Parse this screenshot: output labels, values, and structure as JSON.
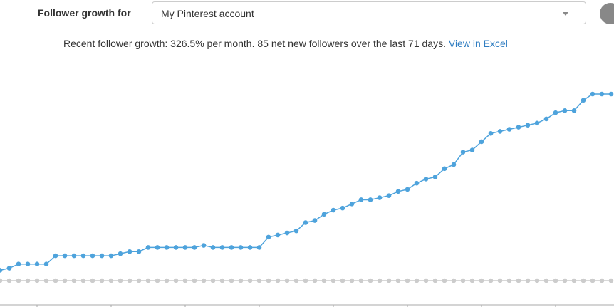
{
  "controls": {
    "label": "Follower growth for",
    "select": "My Pinterest account",
    "summary": "Recent follower growth: 326.5% per month. 85 net new followers over the last 71 days.",
    "link": "View in Excel"
  },
  "chart_data": {
    "type": "line",
    "categories": [
      null,
      null,
      null,
      null,
      null,
      null,
      null,
      null,
      null,
      null,
      null,
      null,
      null,
      null,
      null,
      null,
      null,
      null,
      null,
      null,
      null,
      null,
      null,
      null,
      null,
      null,
      null,
      null,
      null,
      null,
      null,
      null,
      null,
      null,
      null,
      null,
      null,
      null,
      null,
      null,
      null,
      null,
      null,
      null,
      null,
      null,
      null,
      null,
      null,
      null,
      null,
      null,
      null,
      null,
      null,
      null,
      null,
      null,
      null,
      null,
      null,
      null,
      null,
      null,
      null,
      null,
      null
    ],
    "series": [
      {
        "color": "#4ea3dc",
        "values": [
          5,
          6,
          8,
          8,
          8,
          8,
          12,
          12,
          12,
          12,
          12,
          12,
          12,
          13,
          14,
          14,
          16,
          16,
          16,
          16,
          16,
          16,
          17,
          16,
          16,
          16,
          16,
          16,
          16,
          21,
          22,
          23,
          24,
          28,
          29,
          32,
          34,
          35,
          37,
          39,
          39,
          40,
          41,
          43,
          44,
          47,
          49,
          50,
          54,
          56,
          62,
          63,
          67,
          71,
          72,
          73,
          74,
          75,
          76,
          78,
          81,
          82,
          82,
          87,
          90,
          90,
          90
        ]
      },
      {
        "color": "#cccccc",
        "values": [
          0,
          0,
          0,
          0,
          0,
          0,
          0,
          0,
          0,
          0,
          0,
          0,
          0,
          0,
          0,
          0,
          0,
          0,
          0,
          0,
          0,
          0,
          0,
          0,
          0,
          0,
          0,
          0,
          0,
          0,
          0,
          0,
          0,
          0,
          0,
          0,
          0,
          0,
          0,
          0,
          0,
          0,
          0,
          0,
          0,
          0,
          0,
          0,
          0,
          0,
          0,
          0,
          0,
          0,
          0,
          0,
          0,
          0,
          0,
          0,
          0,
          0,
          0,
          0,
          0,
          0,
          0
        ]
      }
    ],
    "ylim": [
      -9,
      100
    ]
  }
}
